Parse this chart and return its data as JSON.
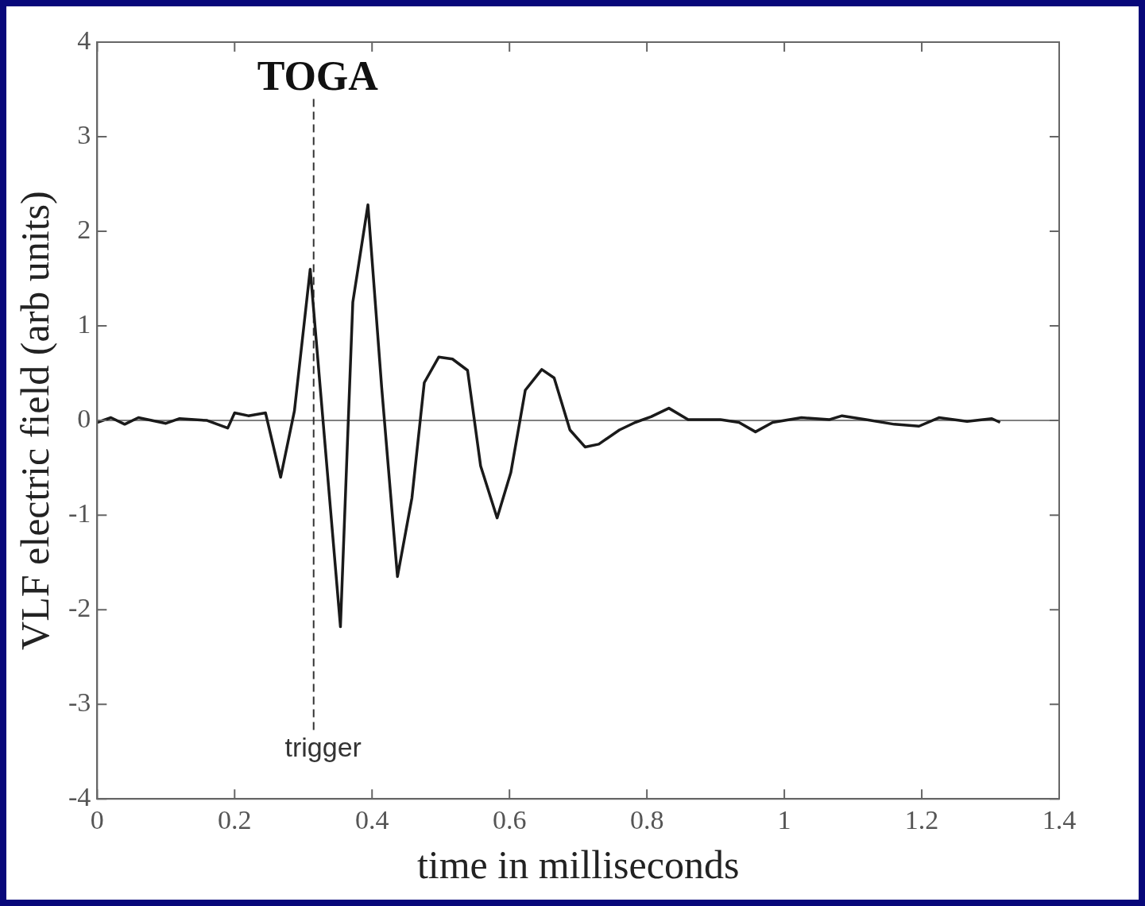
{
  "chart_data": {
    "type": "line",
    "xlabel": "time in milliseconds",
    "ylabel": "VLF electric field (arb units)",
    "x": [
      0,
      0.02,
      0.04,
      0.06,
      0.1,
      0.12,
      0.16,
      0.19,
      0.2,
      0.22,
      0.245,
      0.267,
      0.287,
      0.31,
      0.354,
      0.372,
      0.394,
      0.414,
      0.437,
      0.458,
      0.476,
      0.497,
      0.517,
      0.539,
      0.558,
      0.582,
      0.602,
      0.623,
      0.647,
      0.665,
      0.688,
      0.71,
      0.73,
      0.76,
      0.783,
      0.806,
      0.832,
      0.86,
      0.907,
      0.934,
      0.958,
      0.983,
      1.025,
      1.066,
      1.084,
      1.119,
      1.16,
      1.196,
      1.225,
      1.266,
      1.302,
      1.314
    ],
    "series": [
      {
        "color": "#1a1a1a",
        "values": [
          -0.02,
          0.03,
          -0.04,
          0.03,
          -0.03,
          0.02,
          0,
          -0.08,
          0.08,
          0.05,
          0.08,
          -0.6,
          0.1,
          1.6,
          -2.18,
          1.25,
          2.28,
          0.35,
          -1.65,
          -0.82,
          0.4,
          0.67,
          0.65,
          0.53,
          -0.48,
          -1.03,
          -0.55,
          0.32,
          0.54,
          0.45,
          -0.1,
          -0.28,
          -0.25,
          -0.1,
          -0.02,
          0.04,
          0.13,
          0.01,
          0.01,
          -0.02,
          -0.12,
          -0.02,
          0.03,
          0.01,
          0.05,
          0.01,
          -0.04,
          -0.06,
          0.03,
          -0.01,
          0.02,
          -0.02
        ]
      }
    ],
    "xlim": [
      0,
      1.4
    ],
    "xticks": [
      0,
      0.2,
      0.4,
      0.6,
      0.8,
      1,
      1.2,
      1.4
    ],
    "ylim": [
      -4,
      4
    ],
    "yticks": [
      -4,
      -3,
      -2,
      -1,
      0,
      1,
      2,
      3,
      4
    ],
    "grid": false,
    "legend": false,
    "marker": "none",
    "line_style": "solid",
    "ref_lines": [
      {
        "axis": "y",
        "value": 0,
        "color": "#808080",
        "line_style": "solid"
      },
      {
        "axis": "x",
        "value": 0.315,
        "label": "trigger",
        "color": "#333333",
        "line_style": "dashed"
      }
    ],
    "annotations": [
      "TOGA"
    ]
  }
}
